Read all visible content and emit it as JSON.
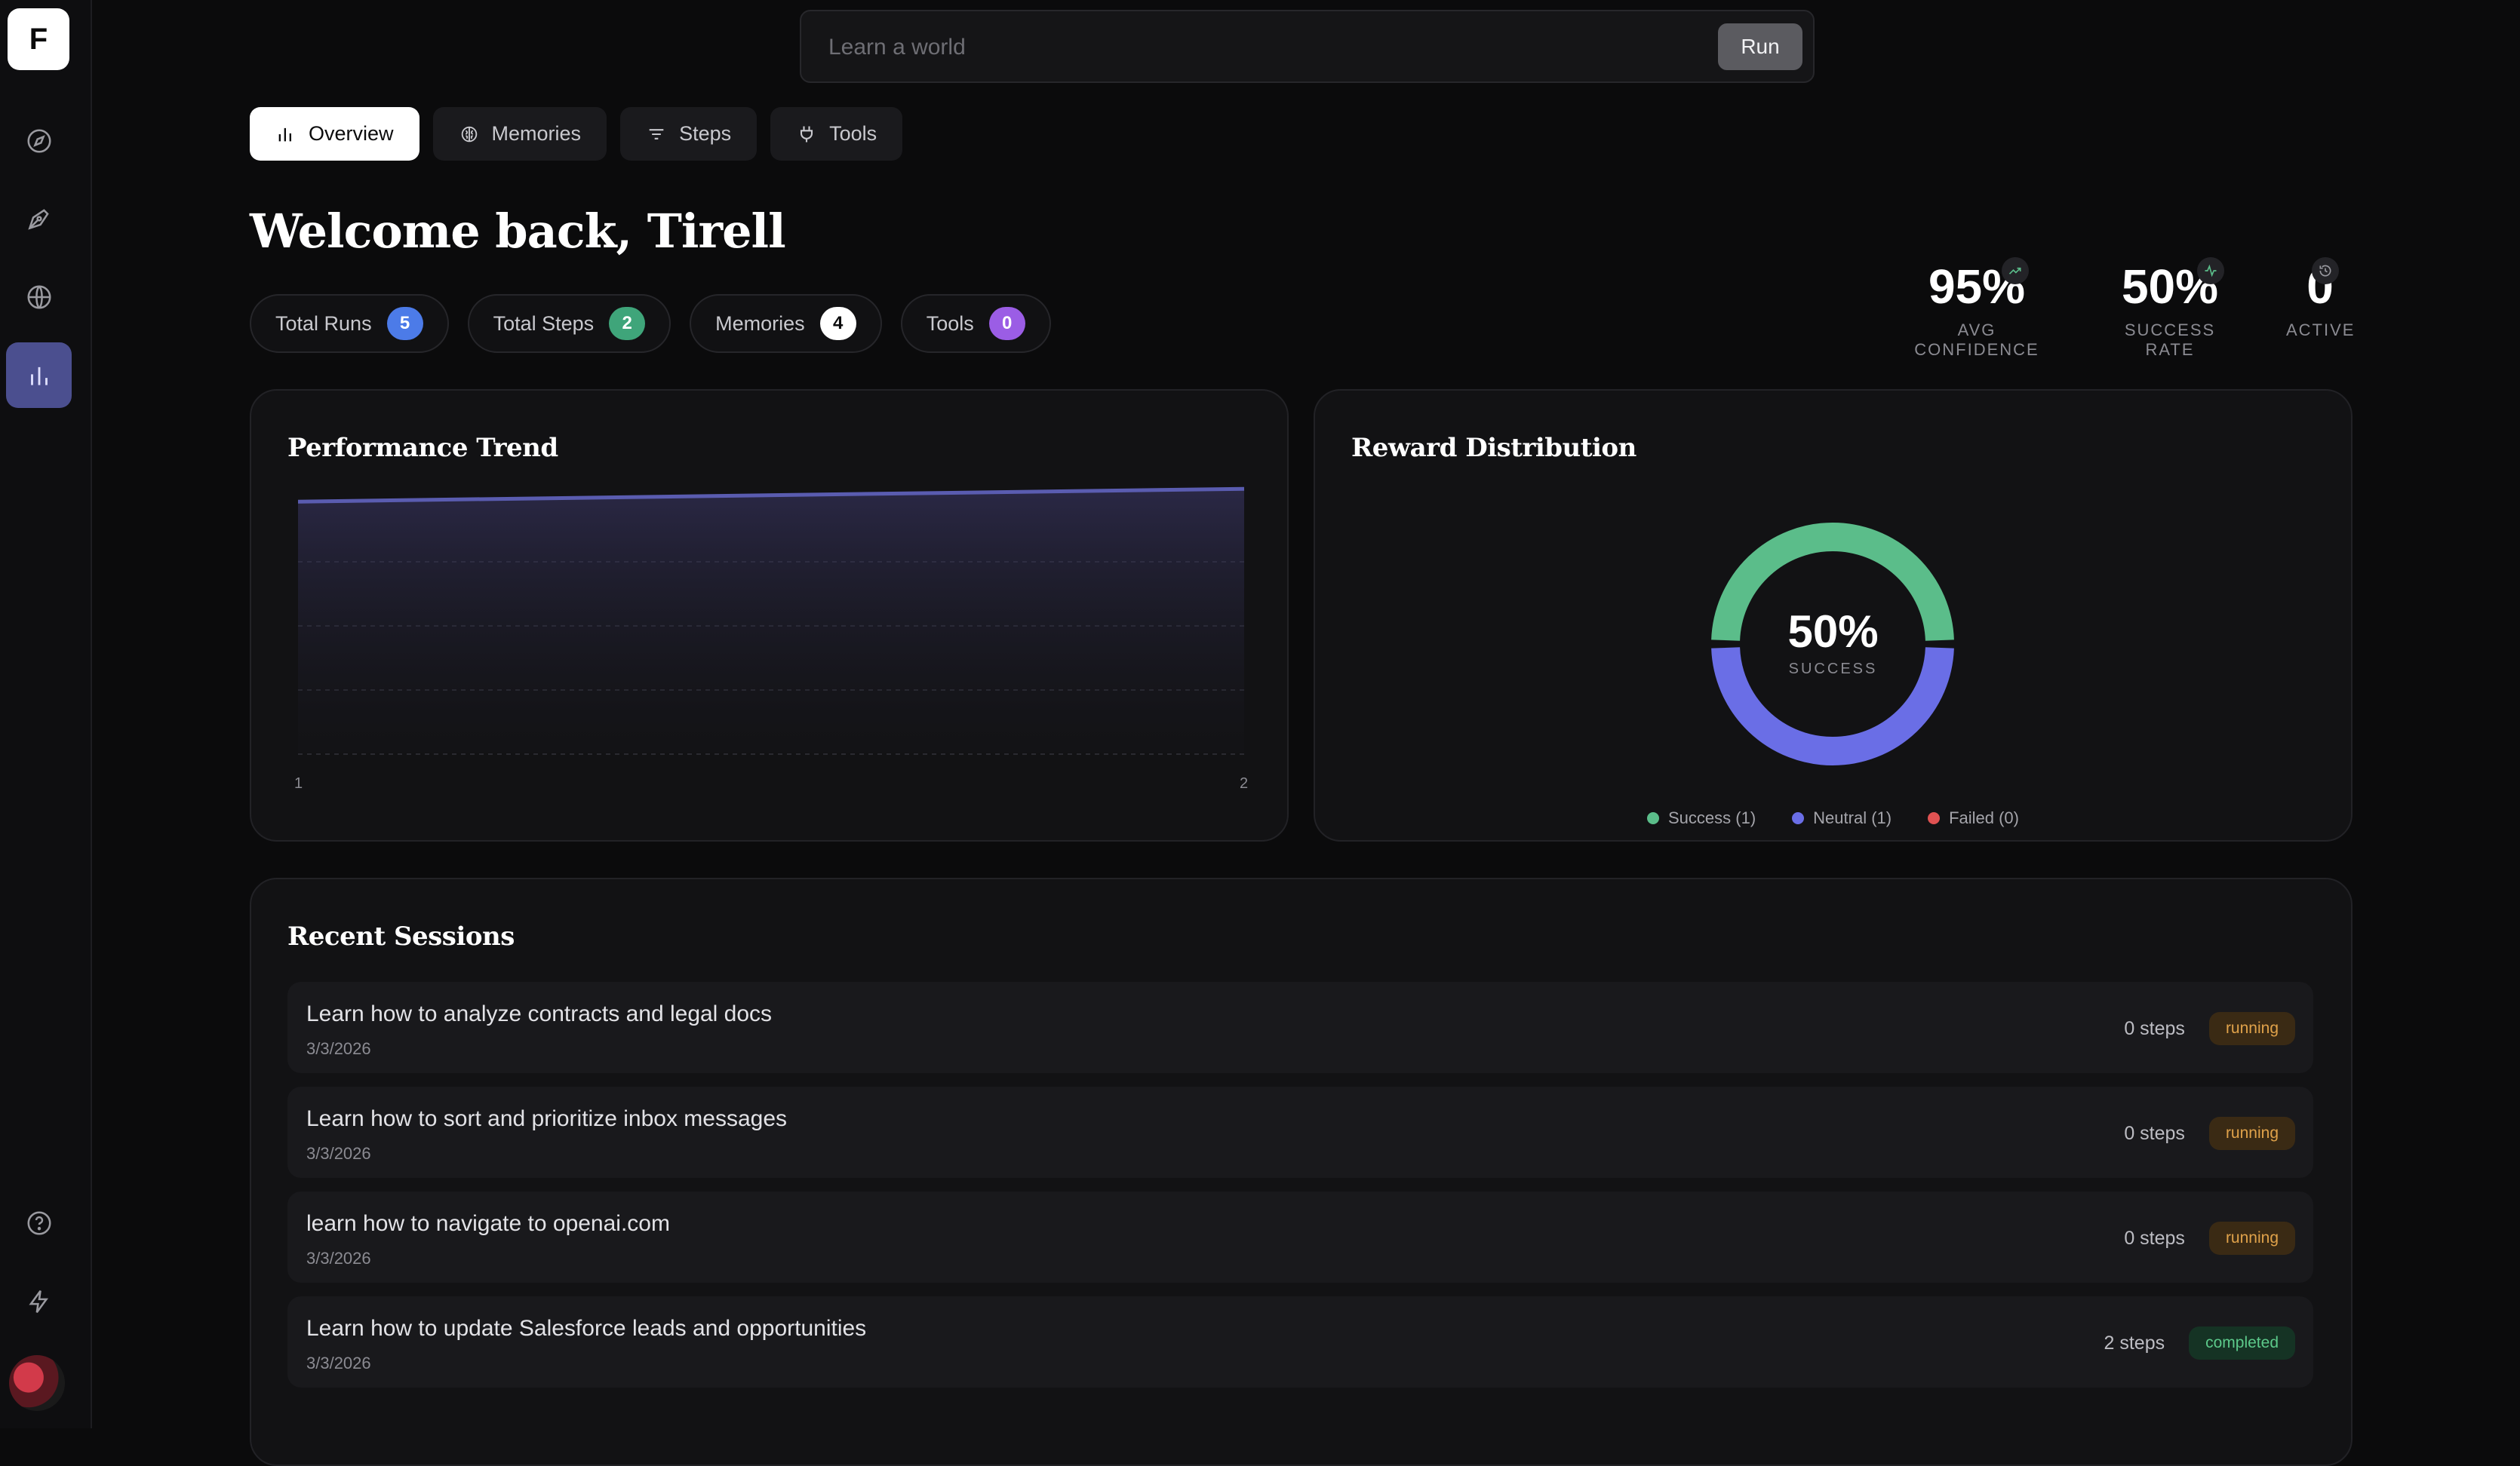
{
  "sidebar": {
    "logo": "F",
    "items": [
      "compass",
      "pen",
      "globe",
      "analytics"
    ],
    "bottom_items": [
      "help",
      "bolt"
    ]
  },
  "search": {
    "placeholder": "Learn a world",
    "value": "",
    "button_label": "Run"
  },
  "tabs": [
    {
      "label": "Overview",
      "icon": "bar-chart-icon",
      "active": true
    },
    {
      "label": "Memories",
      "icon": "brain-icon",
      "active": false
    },
    {
      "label": "Steps",
      "icon": "filter-icon",
      "active": false
    },
    {
      "label": "Tools",
      "icon": "plug-icon",
      "active": false
    }
  ],
  "welcome": "Welcome back, Tirell",
  "pills": [
    {
      "label": "Total Runs",
      "count": "5",
      "color": "#4c7be8"
    },
    {
      "label": "Total Steps",
      "count": "2",
      "color": "#3fa57a"
    },
    {
      "label": "Memories",
      "count": "4",
      "color": "#ffffff"
    },
    {
      "label": "Tools",
      "count": "0",
      "color": "#9b5de5"
    }
  ],
  "stats": [
    {
      "value": "95%",
      "label": "AVG CONFIDENCE",
      "icon": "trending-up-icon"
    },
    {
      "value": "50%",
      "label": "SUCCESS RATE",
      "icon": "activity-icon"
    },
    {
      "value": "0",
      "label": "ACTIVE",
      "icon": "history-icon"
    }
  ],
  "performance": {
    "title": "Performance Trend",
    "x_ticks": [
      "1",
      "2"
    ]
  },
  "reward": {
    "title": "Reward Distribution",
    "center_value": "50%",
    "center_label": "SUCCESS",
    "legend": [
      {
        "label": "Success (1)",
        "color": "#5bbd8a"
      },
      {
        "label": "Neutral (1)",
        "color": "#6a6ee6"
      },
      {
        "label": "Failed (0)",
        "color": "#e05252"
      }
    ]
  },
  "chart_data": [
    {
      "type": "area",
      "title": "Performance Trend",
      "x": [
        1,
        2
      ],
      "series": [
        {
          "values": [
            0.92,
            0.97
          ]
        }
      ],
      "ylim": [
        0,
        1
      ],
      "grid": true
    },
    {
      "type": "pie",
      "title": "Reward Distribution",
      "categories": [
        "Success",
        "Neutral",
        "Failed"
      ],
      "values": [
        1,
        1,
        0
      ],
      "colors": [
        "#5bbd8a",
        "#6a6ee6",
        "#e05252"
      ]
    }
  ],
  "recent": {
    "title": "Recent Sessions",
    "sessions": [
      {
        "title": "Learn how to analyze contracts and legal docs",
        "date": "3/3/2026",
        "steps": "0 steps",
        "status": "running"
      },
      {
        "title": "Learn how to sort and prioritize inbox messages",
        "date": "3/3/2026",
        "steps": "0 steps",
        "status": "running"
      },
      {
        "title": "learn how to navigate to openai.com",
        "date": "3/3/2026",
        "steps": "0 steps",
        "status": "running"
      },
      {
        "title": "Learn how to update Salesforce leads and opportunities",
        "date": "3/3/2026",
        "steps": "2 steps",
        "status": "completed"
      }
    ]
  }
}
